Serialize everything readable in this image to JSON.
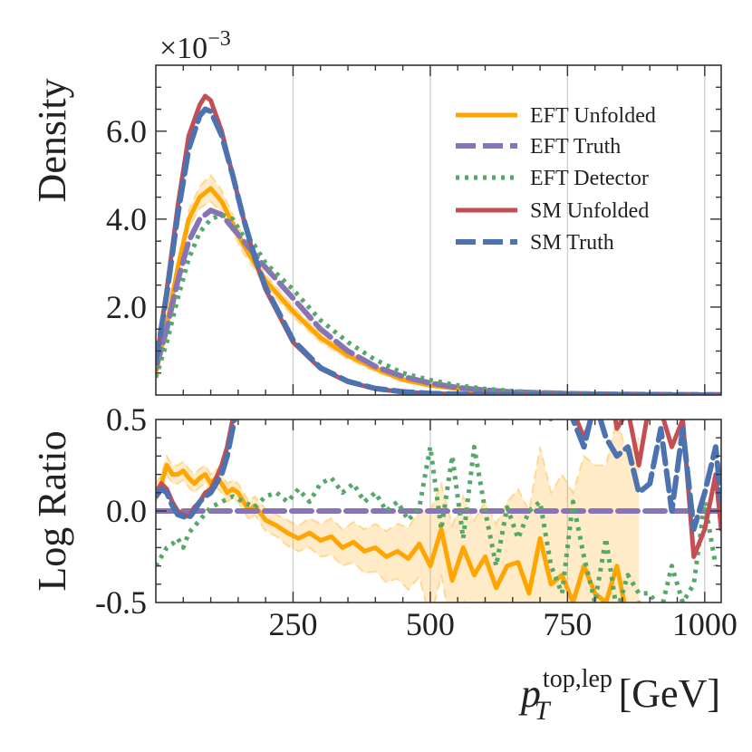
{
  "chart_data": [
    {
      "panel": "main",
      "type": "line",
      "ylabel": "Density",
      "scale_label": "×10",
      "scale_exponent": "−3",
      "xlim": [
        0,
        1030
      ],
      "ylim": [
        0,
        7.5
      ],
      "y_unit_note": "values in units of 1e-3",
      "yticks": [
        2.0,
        4.0,
        6.0
      ],
      "ytick_labels": [
        "2.0",
        "4.0",
        "6.0"
      ],
      "xgrid": [
        250,
        500,
        750,
        1000
      ],
      "legend_position": "top-right",
      "series": [
        {
          "name": "EFT Unfolded",
          "color": "#FFA500",
          "style": "solid",
          "band": true,
          "x": [
            0,
            20,
            40,
            60,
            80,
            100,
            120,
            140,
            160,
            180,
            200,
            250,
            300,
            350,
            400,
            450,
            500,
            550,
            600,
            650,
            700,
            750,
            800,
            850,
            900,
            950,
            1000,
            1030
          ],
          "y": [
            0.5,
            1.6,
            2.9,
            4.0,
            4.5,
            4.7,
            4.4,
            3.9,
            3.4,
            3.0,
            2.6,
            1.9,
            1.3,
            0.9,
            0.6,
            0.35,
            0.22,
            0.14,
            0.09,
            0.06,
            0.04,
            0.03,
            0.02,
            0.015,
            0.012,
            0.01,
            0.008,
            0.007
          ],
          "band_halfwidth": [
            0.1,
            0.12,
            0.15,
            0.2,
            0.25,
            0.3,
            0.25,
            0.2,
            0.18,
            0.15,
            0.14,
            0.12,
            0.1,
            0.08,
            0.07,
            0.05,
            0.04,
            0.03,
            0.02,
            0.015,
            0.01,
            0.01,
            0.01,
            0.008,
            0.007,
            0.006,
            0.005,
            0.005
          ]
        },
        {
          "name": "EFT Truth",
          "color": "#8674B6",
          "style": "dashed",
          "x": [
            0,
            20,
            40,
            60,
            80,
            100,
            120,
            140,
            160,
            180,
            200,
            250,
            300,
            350,
            400,
            450,
            500,
            550,
            600,
            650,
            700,
            750,
            800,
            850,
            900,
            950,
            1000,
            1030
          ],
          "y": [
            0.6,
            1.5,
            2.6,
            3.5,
            4.0,
            4.2,
            4.1,
            3.8,
            3.5,
            3.2,
            2.9,
            2.2,
            1.5,
            1.0,
            0.65,
            0.42,
            0.27,
            0.17,
            0.11,
            0.07,
            0.05,
            0.035,
            0.025,
            0.018,
            0.013,
            0.01,
            0.008,
            0.007
          ]
        },
        {
          "name": "EFT Detector",
          "color": "#55A868",
          "style": "dotted",
          "x": [
            0,
            20,
            40,
            60,
            80,
            100,
            120,
            140,
            160,
            180,
            200,
            250,
            300,
            350,
            400,
            450,
            500,
            550,
            600,
            650,
            700,
            750,
            800,
            850,
            900,
            950,
            1000,
            1030
          ],
          "y": [
            0.4,
            1.2,
            2.2,
            3.1,
            3.7,
            4.0,
            4.1,
            4.0,
            3.6,
            3.4,
            3.0,
            2.4,
            1.7,
            1.2,
            0.8,
            0.5,
            0.34,
            0.22,
            0.14,
            0.09,
            0.06,
            0.045,
            0.03,
            0.022,
            0.015,
            0.012,
            0.01,
            0.008
          ]
        },
        {
          "name": "SM Unfolded",
          "color": "#C44E52",
          "style": "solid",
          "x": [
            0,
            20,
            40,
            60,
            80,
            90,
            100,
            120,
            140,
            160,
            180,
            200,
            250,
            300,
            350,
            400,
            450,
            500,
            550,
            600,
            650,
            700,
            750,
            800,
            850,
            900,
            950,
            1000,
            1030
          ],
          "y": [
            0.7,
            2.4,
            4.3,
            5.9,
            6.6,
            6.8,
            6.7,
            6.0,
            5.0,
            4.0,
            3.1,
            2.4,
            1.2,
            0.6,
            0.3,
            0.14,
            0.07,
            0.035,
            0.018,
            0.01,
            0.006,
            0.004,
            0.003,
            0.002,
            0.002,
            0.0015,
            0.001,
            0.001,
            0.001
          ]
        },
        {
          "name": "SM Truth",
          "color": "#4C72B0",
          "style": "dashed",
          "x": [
            0,
            20,
            40,
            60,
            80,
            90,
            100,
            120,
            140,
            160,
            180,
            200,
            250,
            300,
            350,
            400,
            450,
            500,
            550,
            600,
            650,
            700,
            750,
            800,
            850,
            900,
            950,
            1000,
            1030
          ],
          "y": [
            0.75,
            2.3,
            4.1,
            5.6,
            6.35,
            6.5,
            6.45,
            5.9,
            5.0,
            4.0,
            3.15,
            2.45,
            1.25,
            0.62,
            0.31,
            0.15,
            0.075,
            0.037,
            0.019,
            0.011,
            0.007,
            0.004,
            0.003,
            0.002,
            0.002,
            0.0015,
            0.001,
            0.001,
            0.001
          ]
        }
      ]
    },
    {
      "panel": "ratio",
      "type": "line",
      "ylabel": "Log Ratio",
      "xlabel_var": "p",
      "xlabel_sub": "T",
      "xlabel_sup": "top,lep",
      "xlabel_unit": "[GeV]",
      "xlim": [
        0,
        1030
      ],
      "ylim": [
        -0.5,
        0.5
      ],
      "yticks": [
        -0.5,
        0.0,
        0.5
      ],
      "ytick_labels": [
        "-0.5",
        "0.0",
        "0.5"
      ],
      "xticks": [
        250,
        500,
        750,
        1000
      ],
      "xtick_labels": [
        "250",
        "500",
        "750",
        "1000"
      ],
      "reference_line": 0.0,
      "series": [
        {
          "name": "EFT Unfolded",
          "color": "#FFA500",
          "style": "solid",
          "band": true,
          "x": [
            0,
            10,
            20,
            30,
            40,
            50,
            60,
            70,
            80,
            90,
            100,
            110,
            120,
            130,
            140,
            150,
            160,
            170,
            180,
            200,
            220,
            240,
            260,
            280,
            300,
            320,
            340,
            360,
            380,
            400,
            420,
            440,
            460,
            480,
            500,
            520,
            540,
            560,
            580,
            600,
            620,
            640,
            660,
            680,
            700,
            720,
            740,
            760,
            780,
            800,
            820,
            840,
            860,
            870,
            880
          ],
          "y": [
            0.1,
            0.15,
            0.25,
            0.2,
            0.2,
            0.22,
            0.18,
            0.15,
            0.18,
            0.2,
            0.15,
            0.18,
            0.15,
            0.1,
            0.12,
            0.1,
            0.05,
            0.0,
            0.03,
            -0.05,
            -0.08,
            -0.12,
            -0.15,
            -0.12,
            -0.16,
            -0.14,
            -0.2,
            -0.17,
            -0.22,
            -0.2,
            -0.25,
            -0.22,
            -0.26,
            -0.18,
            -0.3,
            -0.1,
            -0.38,
            -0.2,
            -0.35,
            -0.25,
            -0.42,
            -0.3,
            -0.28,
            -0.45,
            -0.15,
            -0.4,
            -0.35,
            -0.5,
            -0.3,
            -0.45,
            -0.5,
            -0.3,
            -0.6,
            -0.55,
            -0.5
          ],
          "band_halfwidth": [
            0.05,
            0.05,
            0.05,
            0.05,
            0.05,
            0.05,
            0.05,
            0.05,
            0.05,
            0.05,
            0.05,
            0.05,
            0.05,
            0.05,
            0.05,
            0.05,
            0.05,
            0.05,
            0.05,
            0.06,
            0.06,
            0.07,
            0.07,
            0.08,
            0.09,
            0.1,
            0.1,
            0.11,
            0.12,
            0.13,
            0.14,
            0.15,
            0.17,
            0.18,
            0.3,
            0.25,
            0.3,
            0.28,
            0.3,
            0.3,
            0.35,
            0.35,
            0.4,
            0.45,
            0.5,
            0.5,
            0.55,
            0.6,
            0.6,
            0.7,
            0.75,
            0.8,
            0.9,
            0.9,
            0.9
          ]
        },
        {
          "name": "EFT Truth",
          "color": "#8674B6",
          "style": "dashed",
          "x": [
            0,
            1030
          ],
          "y": [
            0.0,
            0.0
          ]
        },
        {
          "name": "EFT Detector",
          "color": "#55A868",
          "style": "dotted",
          "x": [
            0,
            10,
            20,
            30,
            40,
            50,
            60,
            80,
            100,
            120,
            140,
            160,
            180,
            200,
            220,
            240,
            260,
            280,
            300,
            320,
            340,
            360,
            380,
            400,
            420,
            440,
            460,
            480,
            500,
            520,
            540,
            560,
            580,
            600,
            620,
            640,
            660,
            680,
            700,
            720,
            740,
            760,
            780,
            800,
            820,
            840,
            860,
            880,
            900,
            920,
            940,
            960,
            980,
            1000,
            1020
          ],
          "y": [
            -0.3,
            -0.25,
            -0.2,
            -0.18,
            -0.15,
            -0.2,
            -0.12,
            -0.05,
            0.02,
            0.05,
            0.08,
            0.05,
            0.02,
            0.08,
            0.1,
            0.05,
            0.12,
            0.05,
            0.15,
            0.18,
            0.1,
            0.15,
            0.05,
            0.1,
            0.0,
            0.05,
            -0.05,
            0.02,
            0.35,
            -0.1,
            0.3,
            -0.15,
            0.35,
            0.0,
            -0.3,
            0.02,
            -0.15,
            0.0,
            0.05,
            -0.3,
            -0.45,
            0.05,
            -0.25,
            -0.5,
            -0.15,
            -0.55,
            -0.35,
            -0.45,
            -0.45,
            -0.55,
            -0.3,
            -0.5,
            -0.4,
            0.05,
            -0.3
          ]
        },
        {
          "name": "SM Unfolded",
          "color": "#C44E52",
          "style": "solid",
          "x": [
            0,
            10,
            20,
            30,
            40,
            50,
            60,
            70,
            80,
            90,
            100,
            110,
            120,
            130,
            140,
            150,
            160,
            700,
            720,
            740,
            760,
            780,
            800,
            820,
            840,
            860,
            880,
            900,
            920,
            940,
            960,
            980,
            1000,
            1020,
            1030
          ],
          "y": [
            0.1,
            0.15,
            0.12,
            0.05,
            0.0,
            -0.02,
            -0.03,
            0.02,
            0.05,
            0.1,
            0.12,
            0.18,
            0.25,
            0.35,
            0.5,
            0.65,
            0.9,
            0.8,
            0.55,
            0.8,
            0.55,
            0.4,
            0.55,
            0.8,
            0.45,
            0.55,
            0.25,
            0.6,
            0.55,
            0.35,
            0.5,
            -0.25,
            -0.1,
            0.2,
            -0.1
          ]
        },
        {
          "name": "SM Truth",
          "color": "#4C72B0",
          "style": "dashed",
          "x": [
            0,
            10,
            20,
            30,
            40,
            50,
            60,
            70,
            80,
            90,
            100,
            110,
            120,
            130,
            140,
            150,
            160,
            700,
            720,
            740,
            760,
            780,
            800,
            820,
            840,
            860,
            880,
            900,
            920,
            940,
            960,
            980,
            1000,
            1020,
            1030
          ],
          "y": [
            0.08,
            0.12,
            0.1,
            0.03,
            -0.02,
            -0.03,
            -0.04,
            0.0,
            0.05,
            0.08,
            0.1,
            0.15,
            0.2,
            0.3,
            0.45,
            0.6,
            0.85,
            0.7,
            0.5,
            0.7,
            0.5,
            0.35,
            0.6,
            0.4,
            0.3,
            0.35,
            0.1,
            0.15,
            0.45,
            0.0,
            0.45,
            -0.1,
            0.1,
            0.35,
            0.05
          ]
        }
      ]
    }
  ]
}
